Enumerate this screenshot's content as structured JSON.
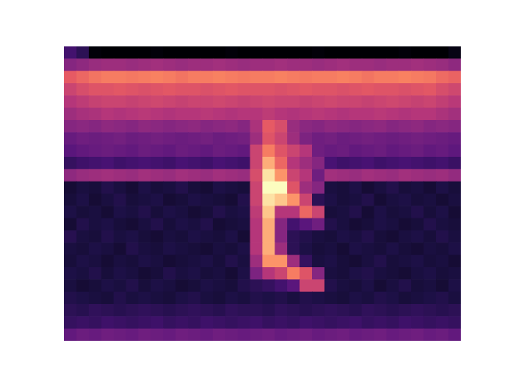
{
  "chart_data": {
    "type": "heatmap",
    "color": "magma",
    "tick_labels": false,
    "cells": [
      [
        25,
        20,
        6,
        5,
        5,
        5,
        5,
        6,
        5,
        5,
        5,
        5,
        5,
        6,
        5,
        5,
        5,
        5,
        5,
        5,
        6,
        5,
        5,
        5,
        5,
        5,
        5,
        6,
        5,
        5,
        5,
        8
      ],
      [
        40,
        42,
        44,
        45,
        45,
        44,
        45,
        46,
        45,
        44,
        45,
        45,
        46,
        45,
        44,
        45,
        45,
        46,
        45,
        45,
        44,
        45,
        46,
        45,
        45,
        44,
        45,
        45,
        46,
        45,
        44,
        42
      ],
      [
        62,
        65,
        68,
        70,
        70,
        69,
        70,
        71,
        70,
        68,
        70,
        70,
        71,
        70,
        69,
        70,
        70,
        71,
        70,
        69,
        70,
        70,
        71,
        70,
        68,
        70,
        70,
        71,
        70,
        69,
        66,
        64
      ],
      [
        55,
        58,
        60,
        60,
        61,
        60,
        59,
        60,
        61,
        60,
        60,
        59,
        60,
        61,
        60,
        60,
        60,
        59,
        60,
        61,
        60,
        60,
        59,
        60,
        61,
        60,
        60,
        59,
        60,
        61,
        58,
        56
      ],
      [
        50,
        52,
        54,
        55,
        55,
        54,
        55,
        56,
        55,
        54,
        55,
        55,
        56,
        55,
        54,
        55,
        56,
        55,
        55,
        54,
        55,
        56,
        55,
        55,
        54,
        55,
        56,
        55,
        54,
        55,
        53,
        51
      ],
      [
        45,
        47,
        48,
        50,
        49,
        50,
        51,
        50,
        49,
        50,
        50,
        51,
        50,
        49,
        50,
        50,
        52,
        50,
        49,
        50,
        51,
        50,
        49,
        50,
        50,
        51,
        50,
        49,
        50,
        50,
        48,
        46
      ],
      [
        40,
        41,
        40,
        42,
        41,
        40,
        42,
        41,
        40,
        41,
        42,
        40,
        41,
        42,
        40,
        48,
        62,
        58,
        44,
        41,
        40,
        42,
        41,
        40,
        41,
        42,
        40,
        41,
        42,
        40,
        41,
        40
      ],
      [
        33,
        35,
        34,
        35,
        36,
        34,
        35,
        36,
        35,
        34,
        35,
        36,
        34,
        35,
        36,
        45,
        60,
        55,
        45,
        38,
        35,
        36,
        34,
        35,
        36,
        35,
        34,
        35,
        36,
        35,
        34,
        33
      ],
      [
        30,
        32,
        33,
        34,
        33,
        32,
        34,
        33,
        32,
        34,
        33,
        32,
        34,
        33,
        32,
        55,
        70,
        60,
        55,
        50,
        35,
        33,
        34,
        32,
        33,
        34,
        32,
        33,
        34,
        32,
        33,
        31
      ],
      [
        22,
        24,
        25,
        26,
        24,
        25,
        26,
        25,
        24,
        26,
        25,
        24,
        26,
        25,
        24,
        55,
        80,
        65,
        50,
        45,
        40,
        26,
        24,
        25,
        26,
        24,
        25,
        26,
        25,
        24,
        25,
        23
      ],
      [
        42,
        44,
        45,
        46,
        45,
        44,
        46,
        45,
        44,
        46,
        45,
        44,
        46,
        45,
        44,
        58,
        90,
        75,
        55,
        50,
        35,
        46,
        45,
        44,
        46,
        45,
        44,
        46,
        45,
        44,
        45,
        43
      ],
      [
        14,
        16,
        15,
        18,
        16,
        14,
        17,
        15,
        16,
        18,
        15,
        14,
        17,
        16,
        15,
        55,
        95,
        95,
        60,
        45,
        40,
        16,
        15,
        17,
        14,
        16,
        18,
        15,
        16,
        14,
        17,
        15
      ],
      [
        15,
        17,
        14,
        16,
        18,
        15,
        16,
        17,
        14,
        15,
        17,
        16,
        15,
        14,
        18,
        55,
        90,
        85,
        75,
        55,
        20,
        17,
        15,
        16,
        18,
        14,
        16,
        17,
        15,
        16,
        14,
        16
      ],
      [
        17,
        15,
        16,
        14,
        17,
        16,
        18,
        15,
        17,
        16,
        14,
        15,
        18,
        16,
        17,
        52,
        85,
        50,
        50,
        65,
        55,
        15,
        16,
        18,
        14,
        17,
        15,
        16,
        18,
        15,
        17,
        14
      ],
      [
        14,
        18,
        16,
        17,
        15,
        14,
        16,
        18,
        15,
        17,
        16,
        18,
        14,
        15,
        16,
        50,
        80,
        40,
        25,
        30,
        35,
        18,
        16,
        14,
        15,
        17,
        16,
        14,
        15,
        18,
        16,
        15
      ],
      [
        19,
        16,
        15,
        18,
        16,
        17,
        15,
        14,
        16,
        15,
        17,
        16,
        15,
        17,
        14,
        50,
        80,
        40,
        20,
        18,
        16,
        15,
        17,
        16,
        18,
        15,
        14,
        16,
        17,
        15,
        18,
        16
      ],
      [
        16,
        15,
        17,
        16,
        14,
        18,
        16,
        15,
        17,
        16,
        15,
        14,
        16,
        15,
        17,
        50,
        80,
        45,
        20,
        17,
        15,
        16,
        14,
        17,
        16,
        15,
        17,
        15,
        14,
        16,
        15,
        17
      ],
      [
        15,
        17,
        16,
        14,
        16,
        15,
        17,
        16,
        14,
        15,
        16,
        17,
        15,
        18,
        16,
        45,
        75,
        75,
        45,
        22,
        16,
        17,
        15,
        14,
        16,
        18,
        15,
        16,
        17,
        15,
        16,
        14
      ],
      [
        17,
        16,
        18,
        15,
        17,
        16,
        14,
        15,
        18,
        16,
        17,
        15,
        16,
        14,
        17,
        38,
        50,
        55,
        70,
        60,
        40,
        16,
        15,
        17,
        18,
        16,
        15,
        14,
        16,
        17,
        15,
        16
      ],
      [
        16,
        14,
        15,
        17,
        16,
        18,
        15,
        17,
        16,
        14,
        15,
        17,
        16,
        15,
        18,
        20,
        22,
        25,
        30,
        55,
        55,
        18,
        16,
        15,
        17,
        14,
        16,
        18,
        15,
        16,
        14,
        17
      ],
      [
        18,
        17,
        16,
        15,
        18,
        16,
        17,
        16,
        15,
        17,
        18,
        16,
        15,
        17,
        16,
        18,
        17,
        18,
        16,
        18,
        17,
        16,
        15,
        17,
        16,
        18,
        17,
        15,
        16,
        17,
        18,
        16
      ],
      [
        20,
        19,
        21,
        20,
        19,
        20,
        21,
        20,
        19,
        20,
        21,
        20,
        19,
        21,
        20,
        20,
        19,
        21,
        20,
        19,
        20,
        21,
        20,
        19,
        21,
        20,
        19,
        20,
        21,
        20,
        19,
        20
      ],
      [
        22,
        23,
        22,
        24,
        23,
        22,
        23,
        24,
        22,
        23,
        22,
        24,
        23,
        22,
        23,
        24,
        22,
        23,
        22,
        24,
        23,
        22,
        23,
        24,
        22,
        23,
        22,
        24,
        23,
        22,
        23,
        22
      ],
      [
        32,
        34,
        33,
        35,
        34,
        33,
        35,
        34,
        33,
        35,
        34,
        33,
        35,
        34,
        33,
        34,
        35,
        33,
        34,
        35,
        33,
        34,
        35,
        33,
        34,
        35,
        33,
        34,
        35,
        33,
        34,
        32
      ]
    ]
  }
}
